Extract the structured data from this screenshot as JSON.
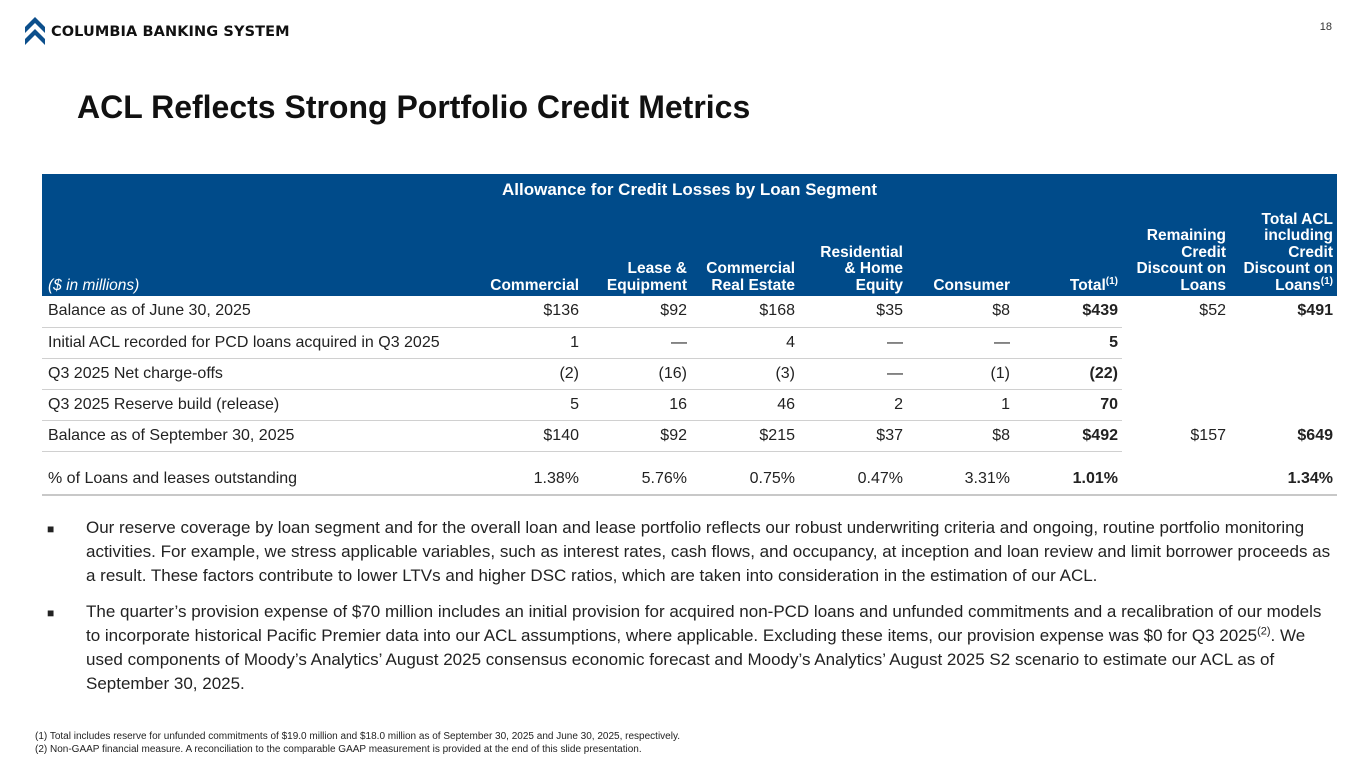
{
  "header": {
    "logo_text": "COLUMBIA BANKING SYSTEM",
    "page_number": "18",
    "title": "ACL Reflects Strong Portfolio Credit Metrics"
  },
  "table": {
    "banner": "Allowance for Credit Losses by Loan Segment",
    "unit_label": "($ in millions)",
    "columns": {
      "commercial": "Commercial",
      "lease_1": "Lease &",
      "lease_2": "Equipment",
      "cre_1": "Commercial",
      "cre_2": "Real Estate",
      "res_1": "Residential",
      "res_2": "& Home",
      "res_3": "Equity",
      "consumer": "Consumer",
      "total": "Total",
      "total_sup": "(1)",
      "rem_1": "Remaining",
      "rem_2": "Credit",
      "rem_3": "Discount on",
      "rem_4": "Loans",
      "tacl_1": "Total ACL",
      "tacl_2": "including",
      "tacl_3": "Credit",
      "tacl_4": "Discount on",
      "tacl_5": "Loans",
      "tacl_sup": "(1)"
    },
    "rows": [
      {
        "label": "Balance as of June 30, 2025",
        "commercial": "$136",
        "lease": "$92",
        "cre": "$168",
        "res": "$35",
        "consumer": "$8",
        "total": "$439",
        "remaining": "$52",
        "total_acl": "$491"
      },
      {
        "label": "Initial ACL recorded for PCD loans acquired in Q3 2025",
        "commercial": "1",
        "lease": "—",
        "cre": "4",
        "res": "—",
        "consumer": "—",
        "total": "5",
        "remaining": "",
        "total_acl": ""
      },
      {
        "label": "Q3 2025 Net charge-offs",
        "commercial": "(2)",
        "lease": "(16)",
        "cre": "(3)",
        "res": "—",
        "consumer": "(1)",
        "total": "(22)",
        "remaining": "",
        "total_acl": ""
      },
      {
        "label": "Q3 2025 Reserve build (release)",
        "commercial": "5",
        "lease": "16",
        "cre": "46",
        "res": "2",
        "consumer": "1",
        "total": "70",
        "remaining": "",
        "total_acl": ""
      },
      {
        "label": "Balance as of September 30, 2025",
        "commercial": "$140",
        "lease": "$92",
        "cre": "$215",
        "res": "$37",
        "consumer": "$8",
        "total": "$492",
        "remaining": "$157",
        "total_acl": "$649"
      },
      {
        "label": "% of Loans and leases outstanding",
        "commercial": "1.38%",
        "lease": "5.76%",
        "cre": "0.75%",
        "res": "0.47%",
        "consumer": "3.31%",
        "total": "1.01%",
        "remaining": "",
        "total_acl": "1.34%"
      }
    ]
  },
  "bullets": {
    "marker": "■",
    "b1": "Our reserve coverage by loan segment and for the overall loan and lease portfolio reflects our robust underwriting criteria and ongoing, routine portfolio monitoring activities. For example, we stress applicable variables, such as interest rates, cash flows, and occupancy, at inception and loan review and limit borrower proceeds as a result. These factors contribute to lower LTVs and higher DSC ratios, which are taken into consideration in the estimation of our ACL.",
    "b2_part1": "The quarter’s provision expense of $70 million includes an initial provision for acquired non-PCD loans and unfunded commitments and a recalibration of our models to incorporate historical Pacific Premier data into our ACL assumptions, where applicable. Excluding these items, our provision expense was $0 for Q3 2025",
    "b2_sup": "(2)",
    "b2_part2": ". We used components of Moody’s Analytics’ August 2025 consensus economic forecast and Moody’s Analytics’ August 2025 S2 scenario to estimate our ACL as of September 30, 2025."
  },
  "footnotes": {
    "f1": "(1)  Total includes reserve for unfunded commitments of $19.0 million and $18.0 million as of September 30, 2025 and June 30, 2025, respectively.",
    "f2": "(2)  Non-GAAP financial measure. A reconciliation to the comparable GAAP measurement is provided at the end of this slide presentation."
  },
  "colors": {
    "header_blue": "#004b8a",
    "logo_blue": "#0c4f8c"
  }
}
